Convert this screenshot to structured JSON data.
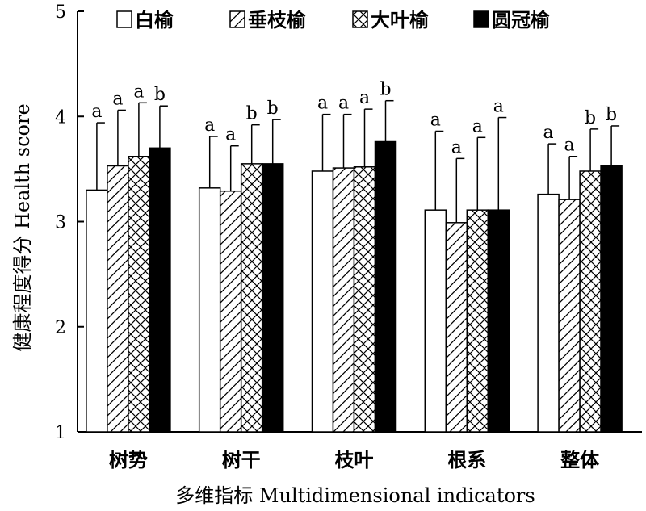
{
  "chart_data": {
    "type": "bar",
    "xlabel": "多维指标 Multidimensional indicators",
    "ylabel": "健康程度得分 Health score",
    "ylim": [
      1,
      5
    ],
    "yticks": [
      1,
      2,
      3,
      4,
      5
    ],
    "categories": [
      "树势",
      "树干",
      "枝叶",
      "根系",
      "整体"
    ],
    "legend_position": "top",
    "series": [
      {
        "name": "白榆",
        "fill": "white",
        "values": [
          3.3,
          3.32,
          3.48,
          3.11,
          3.26
        ],
        "error": [
          0.64,
          0.49,
          0.54,
          0.75,
          0.48
        ],
        "labels": [
          "a",
          "a",
          "a",
          "a",
          "a"
        ]
      },
      {
        "name": "垂枝榆",
        "fill": "hatch",
        "values": [
          3.53,
          3.29,
          3.51,
          2.99,
          3.21
        ],
        "error": [
          0.53,
          0.43,
          0.51,
          0.61,
          0.41
        ],
        "labels": [
          "a",
          "a",
          "a",
          "a",
          "a"
        ]
      },
      {
        "name": "大叶榆",
        "fill": "crosshatch",
        "values": [
          3.62,
          3.55,
          3.52,
          3.11,
          3.48
        ],
        "error": [
          0.51,
          0.37,
          0.55,
          0.69,
          0.4
        ],
        "labels": [
          "a",
          "b",
          "a",
          "a",
          "b"
        ]
      },
      {
        "name": "圆冠榆",
        "fill": "black",
        "values": [
          3.7,
          3.55,
          3.76,
          3.11,
          3.53
        ],
        "error": [
          0.4,
          0.42,
          0.39,
          0.88,
          0.38
        ],
        "labels": [
          "b",
          "b",
          "b",
          "a",
          "b"
        ]
      }
    ]
  }
}
